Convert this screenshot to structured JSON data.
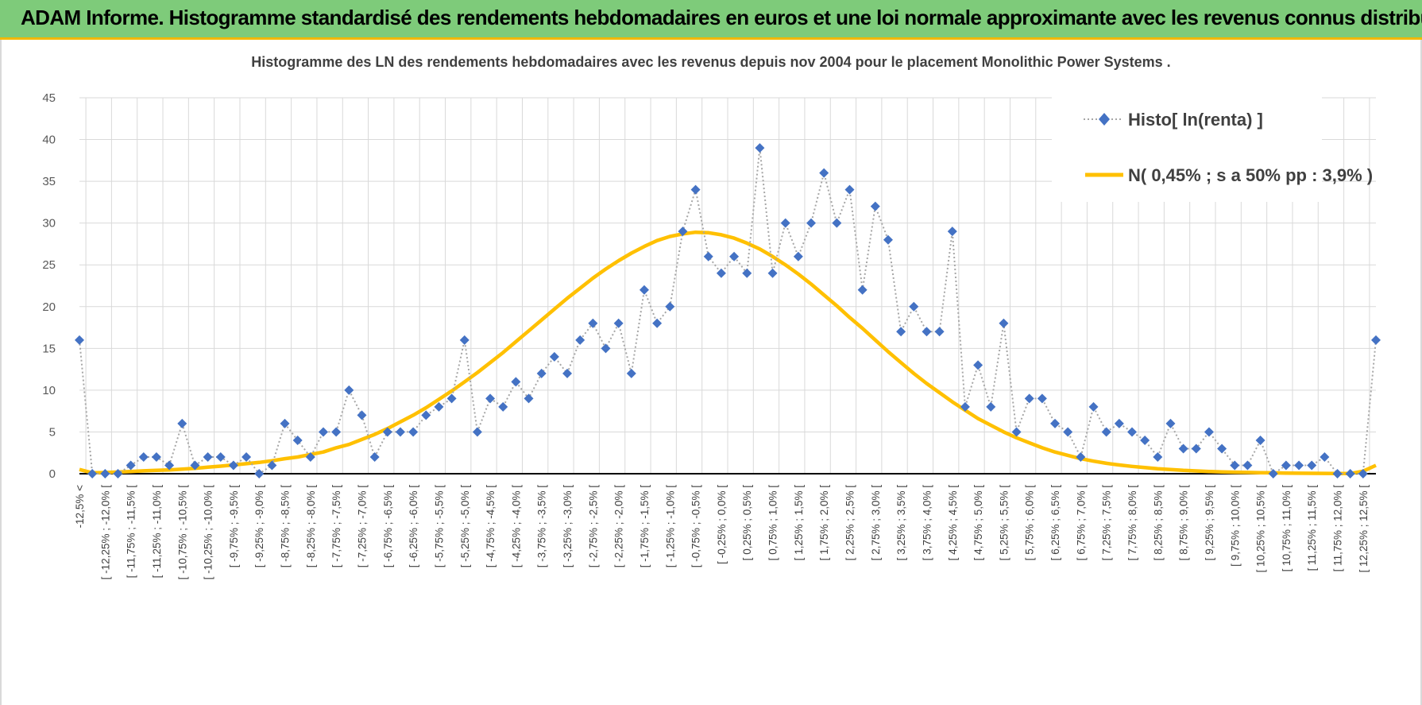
{
  "banner": {
    "title": "ADAM Informe. Histogramme standardisé des rendements hebdomadaires en euros et une loi normale approximante avec les revenus connus distribués"
  },
  "colors": {
    "banner_bg": "#7ecb7a",
    "banner_border": "#f2b800",
    "histo": "#4472c4",
    "histo_line": "#a6a6a6",
    "normal": "#ffc000"
  },
  "chart_data": {
    "type": "line",
    "title": "Histogramme  des LN des rendements hebdomadaires avec les revenus depuis nov 2004 pour le placement Monolithic Power Systems .",
    "xlabel": "",
    "ylabel": "",
    "ylim": [
      0,
      45
    ],
    "yticks": [
      0,
      5,
      10,
      15,
      20,
      25,
      30,
      35,
      40,
      45
    ],
    "grid": true,
    "legend_position": "top-right",
    "categories": [
      "-12,5% <",
      "[ -12,5% ; -12,25% [",
      "[ -12,25% ; -12,0% [",
      "[ -12,0% ; -11,75% [",
      "[ -11,75% ; -11,5% [",
      "[ -11,5% ; -11,25% [",
      "[ -11,25% ; -11,0% [",
      "[ -11,0% ; -10,75% [",
      "[ -10,75% ; -10,5% [",
      "[ -10,5% ; -10,25% [",
      "[ -10,25% ; -10,0% [",
      "[ -10,0% ; -9,75% [",
      "[ -9,75% ; -9,5% [",
      "[ -9,5% ; -9,25% [",
      "[ -9,25% ; -9,0% [",
      "[ -9,0% ; -8,75% [",
      "[ -8,75% ; -8,5% [",
      "[ -8,5% ; -8,25% [",
      "[ -8,25% ; -8,0% [",
      "[ -8,0% ; -7,75% [",
      "[ -7,75% ; -7,5% [",
      "[ -7,5% ; -7,25% [",
      "[ -7,25% ; -7,0% [",
      "[ -7,0% ; -6,75% [",
      "[ -6,75% ; -6,5% [",
      "[ -6,5% ; -6,25% [",
      "[ -6,25% ; -6,0% [",
      "[ -6,0% ; -5,75% [",
      "[ -5,75% ; -5,5% [",
      "[ -5,5% ; -5,25% [",
      "[ -5,25% ; -5,0% [",
      "[ -5,0% ; -4,75% [",
      "[ -4,75% ; -4,5% [",
      "[ -4,5% ; -4,25% [",
      "[ -4,25% ; -4,0% [",
      "[ -4,0% ; -3,75% [",
      "[ -3,75% ; -3,5% [",
      "[ -3,5% ; -3,25% [",
      "[ -3,25% ; -3,0% [",
      "[ -3,0% ; -2,75% [",
      "[ -2,75% ; -2,5% [",
      "[ -2,5% ; -2,25% [",
      "[ -2,25% ; -2,0% [",
      "[ -2,0% ; -1,75% [",
      "[ -1,75% ; -1,5% [",
      "[ -1,5% ; -1,25% [",
      "[ -1,25% ; -1,0% [",
      "[ -1,0% ; -0,75% [",
      "[ -0,75% ; -0,5% [",
      "[ -0,5% ; -0,25% [",
      "[ -0,25% ; 0,0% [",
      "[ 0,0% ; 0,25% [",
      "[ 0,25% ; 0,5% [",
      "[ 0,5% ; 0,75% [",
      "[ 0,75% ; 1,0% [",
      "[ 1,0% ; 1,25% [",
      "[ 1,25% ; 1,5% [",
      "[ 1,5% ; 1,75% [",
      "[ 1,75% ; 2,0% [",
      "[ 2,0% ; 2,25% [",
      "[ 2,25% ; 2,5% [",
      "[ 2,5% ; 2,75% [",
      "[ 2,75% ; 3,0% [",
      "[ 3,0% ; 3,25% [",
      "[ 3,25% ; 3,5% [",
      "[ 3,5% ; 3,75% [",
      "[ 3,75% ; 4,0% [",
      "[ 4,0% ; 4,25% [",
      "[ 4,25% ; 4,5% [",
      "[ 4,5% ; 4,75% [",
      "[ 4,75% ; 5,0% [",
      "[ 5,0% ; 5,25% [",
      "[ 5,25% ; 5,5% [",
      "[ 5,5% ; 5,75% [",
      "[ 5,75% ; 6,0% [",
      "[ 6,0% ; 6,25% [",
      "[ 6,25% ; 6,5% [",
      "[ 6,5% ; 6,75% [",
      "[ 6,75% ; 7,0% [",
      "[ 7,0% ; 7,25% [",
      "[ 7,25% ; 7,5% [",
      "[ 7,5% ; 7,75% [",
      "[ 7,75% ; 8,0% [",
      "[ 8,0% ; 8,25% [",
      "[ 8,25% ; 8,5% [",
      "[ 8,5% ; 8,75% [",
      "[ 8,75% ; 9,0% [",
      "[ 9,0% ; 9,25% [",
      "[ 9,25% ; 9,5% [",
      "[ 9,5% ; 9,75% [",
      "[ 9,75% ; 10,0% [",
      "[ 10,0% ; 10,25% [",
      "[ 10,25% ; 10,5% [",
      "[ 10,5% ; 10,75% [",
      "[ 10,75% ; 11,0% [",
      "[ 11,0% ; 11,25% [",
      "[ 11,25% ; 11,5% [",
      "[ 11,5% ; 11,75% [",
      "[ 11,75% ; 12,0% [",
      "[ 12,0% ; 12,25% [",
      "[ 12,25% ; 12,5% [",
      "12,5% <"
    ],
    "series": [
      {
        "name": "Histo[ ln(renta) ]",
        "style": "dotted line with diamond markers",
        "values": [
          16,
          0,
          0,
          0,
          1,
          2,
          2,
          1,
          6,
          1,
          2,
          2,
          1,
          2,
          0,
          1,
          6,
          4,
          2,
          5,
          5,
          10,
          7,
          2,
          5,
          5,
          5,
          7,
          8,
          9,
          16,
          5,
          9,
          8,
          11,
          9,
          12,
          14,
          12,
          16,
          18,
          15,
          18,
          12,
          22,
          18,
          20,
          29,
          34,
          26,
          24,
          26,
          24,
          39,
          24,
          30,
          26,
          30,
          36,
          30,
          34,
          22,
          32,
          28,
          17,
          20,
          17,
          17,
          29,
          8,
          13,
          8,
          18,
          5,
          9,
          9,
          6,
          5,
          2,
          8,
          5,
          6,
          5,
          4,
          2,
          6,
          3,
          3,
          5,
          3,
          1,
          1,
          4,
          0,
          1,
          1,
          1,
          2,
          0,
          0,
          0,
          16
        ]
      },
      {
        "name": "N( 0,45% ; s a 50% pp : 3,9% )",
        "style": "solid thick line",
        "values": [
          0.5,
          0.1,
          0.14,
          0.2,
          0.27,
          0.34,
          0.4,
          0.46,
          0.55,
          0.65,
          0.78,
          0.9,
          1.05,
          1.2,
          1.35,
          1.55,
          1.8,
          2.0,
          2.3,
          2.6,
          3.1,
          3.5,
          4.1,
          4.7,
          5.4,
          6.2,
          7.0,
          7.9,
          8.9,
          9.9,
          11.0,
          12.1,
          13.3,
          14.5,
          15.8,
          17.1,
          18.4,
          19.7,
          21.0,
          22.2,
          23.4,
          24.5,
          25.5,
          26.4,
          27.2,
          27.9,
          28.4,
          28.7,
          28.9,
          28.85,
          28.6,
          28.2,
          27.6,
          26.9,
          26.0,
          25.0,
          23.9,
          22.7,
          21.4,
          20.1,
          18.7,
          17.4,
          16.0,
          14.6,
          13.3,
          12.0,
          10.8,
          9.7,
          8.6,
          7.6,
          6.6,
          5.8,
          5.0,
          4.3,
          3.7,
          3.1,
          2.6,
          2.2,
          1.8,
          1.5,
          1.25,
          1.05,
          0.88,
          0.73,
          0.6,
          0.5,
          0.4,
          0.33,
          0.27,
          0.22,
          0.18,
          0.15,
          0.12,
          0.1,
          0.08,
          0.06,
          0.05,
          0.04,
          0.03,
          0.02,
          0.3,
          1.0
        ]
      }
    ]
  }
}
